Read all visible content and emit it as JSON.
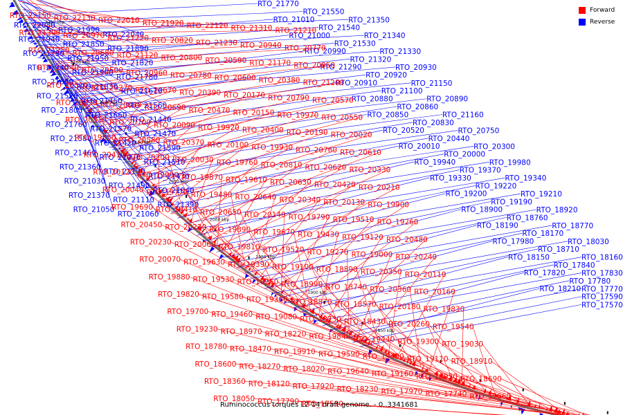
{
  "legend": {
    "forward": {
      "label": "Forward",
      "color": "#ff0000"
    },
    "reverse": {
      "label": "Reverse",
      "color": "#0000ff"
    }
  },
  "caption": "Ruminococcus torques L2-14 draft genome. - 0..3341681",
  "axis_ticks": [
    "2250 kbp",
    "2200 kbp",
    "2150 kbp",
    "2100 kbp",
    "2050 kbp",
    "2000 kbp",
    "1950 kbp",
    "1900 kbp",
    "1850 kbp"
  ],
  "labels_reverse": [
    "RTO_21770",
    "RTO_21550",
    "RTO_21350",
    "RTO_21010",
    "RTO_21540",
    "RTO_21340",
    "RTO_21000",
    "RTO_21530",
    "RTO_21330",
    "RTO_20990",
    "RTO_21320",
    "RTO_20930",
    "RTO_21290",
    "RTO_20920",
    "RTO_21150",
    "RTO_20910",
    "RTO_21100",
    "RTO_20890",
    "RTO_20880",
    "RTO_20860",
    "RTO_21160",
    "RTO_20850",
    "RTO_20830",
    "RTO_20750",
    "RTO_20520",
    "RTO_20440",
    "RTO_20300",
    "RTO_20010",
    "RTO_20000",
    "RTO_19980",
    "RTO_19940",
    "RTO_19370",
    "RTO_19340",
    "RTO_19330",
    "RTO_19220",
    "RTO_19210",
    "RTO_19200",
    "RTO_19190",
    "RTO_18920",
    "RTO_18900",
    "RTO_18760",
    "RTO_18770",
    "RTO_18190",
    "RTO_18170",
    "RTO_18030",
    "RTO_17980",
    "RTO_18710",
    "RTO_18160",
    "RTO_18150",
    "RTO_17840",
    "RTO_17830",
    "RTO_17820",
    "RTO_17780",
    "RTO_17770",
    "RTO_18210",
    "RTO_17590",
    "RTO_17570",
    "RTO_22080",
    "RTO_21990",
    "RTO_22040",
    "RTO_21940",
    "RTO_21850",
    "RTO_21890",
    "RTO_21790",
    "RTO_21950",
    "RTO_21820",
    "RTO_21740",
    "RTO_21900",
    "RTO_21780",
    "RTO_21640",
    "RTO_21830",
    "RTO_21610",
    "RTO_21520",
    "RTO_21750",
    "RTO_21560",
    "RTO_21800",
    "RTO_21660",
    "RTO_21440",
    "RTO_21760",
    "RTO_21570",
    "RTO_21470",
    "RTO_21580",
    "RTO_21420",
    "RTO_21590",
    "RTO_21460",
    "RTO_21070",
    "RTO_21510",
    "RTO_21360",
    "RTO_21130",
    "RTO_21430",
    "RTO_21030",
    "RTO_21490",
    "RTO_21040",
    "RTO_21370",
    "RTO_21110",
    "RTO_21390",
    "RTO_21050",
    "RTO_21060"
  ],
  "labels_forward": [
    "RTO_22150",
    "RTO_22130",
    "RTO_22010",
    "RTO_21920",
    "RTO_22120",
    "RTO_21310",
    "RTO_21210",
    "RTO_21300",
    "RTO_20970",
    "RTO_21220",
    "RTO_20820",
    "RTO_21230",
    "RTO_20940",
    "RTO_20770",
    "RTO_21250",
    "RTO_20680",
    "RTO_21120",
    "RTO_20800",
    "RTO_20590",
    "RTO_21170",
    "RTO_20950",
    "RTO_20740",
    "RTO_20500",
    "RTO_20960",
    "RTO_20780",
    "RTO_20600",
    "RTO_20380",
    "RTO_21200",
    "RTO_20510",
    "RTO_20270",
    "RTO_20670",
    "RTO_20390",
    "RTO_20170",
    "RTO_20790",
    "RTO_20570",
    "RTO_20290",
    "RTO_20080",
    "RTO_20690",
    "RTO_20470",
    "RTO_20150",
    "RTO_19970",
    "RTO_20550",
    "RTO_20310",
    "RTO_20700",
    "RTO_20090",
    "RTO_19920",
    "RTO_20400",
    "RTO_20190",
    "RTO_20020",
    "RTO_19850",
    "RTO_20580",
    "RTO_20370",
    "RTO_20100",
    "RTO_19930",
    "RTO_20760",
    "RTO_20610",
    "RTO_20410",
    "RTO_20200",
    "RTO_20030",
    "RTO_19760",
    "RTO_20810",
    "RTO_20620",
    "RTO_20330",
    "RTO_20120",
    "RTO_19950",
    "RTO_19870",
    "RTO_19610",
    "RTO_20630",
    "RTO_20420",
    "RTO_20210",
    "RTO_20040",
    "RTO_19770",
    "RTO_19480",
    "RTO_20640",
    "RTO_20340",
    "RTO_20130",
    "RTO_19900",
    "RTO_19690",
    "RTO_19410",
    "RTO_20650",
    "RTO_20140",
    "RTO_19790",
    "RTO_19510",
    "RTO_19260",
    "RTO_20450",
    "RTO_20220",
    "RTO_19890",
    "RTO_19670",
    "RTO_19430",
    "RTO_19120",
    "RTO_20480",
    "RTO_20230",
    "RTO_20060",
    "RTO_19810",
    "RTO_19520",
    "RTO_19270",
    "RTO_19000",
    "RTO_20240",
    "RTO_20070",
    "RTO_19630",
    "RTO_19390",
    "RTO_19100",
    "RTO_18890",
    "RTO_20350",
    "RTO_20110",
    "RTO_19880",
    "RTO_19530",
    "RTO_19250",
    "RTO_18990",
    "RTO_18740",
    "RTO_20360",
    "RTO_20160",
    "RTO_19820",
    "RTO_19580",
    "RTO_19360",
    "RTO_18870",
    "RTO_18570",
    "RTO_20180",
    "RTO_19830",
    "RTO_19700",
    "RTO_19460",
    "RTO_19080",
    "RTO_18730",
    "RTO_18430",
    "RTO_20260",
    "RTO_19540",
    "RTO_19230",
    "RTO_18970",
    "RTO_18220",
    "RTO_19840",
    "RTO_19440",
    "RTO_19300",
    "RTO_19030",
    "RTO_18780",
    "RTO_18470",
    "RTO_19910",
    "RTO_19590",
    "RTO_19400",
    "RTO_19110",
    "RTO_18910",
    "RTO_18600",
    "RTO_18270",
    "RTO_18020",
    "RTO_19640",
    "RTO_19160",
    "RTO_18950",
    "RTO_18690",
    "RTO_18360",
    "RTO_18120",
    "RTO_17920",
    "RTO_18230",
    "RTO_17970",
    "RTO_17740",
    "RTO_19660",
    "RTO_18050",
    "RTO_17790",
    "RTO_17530"
  ]
}
